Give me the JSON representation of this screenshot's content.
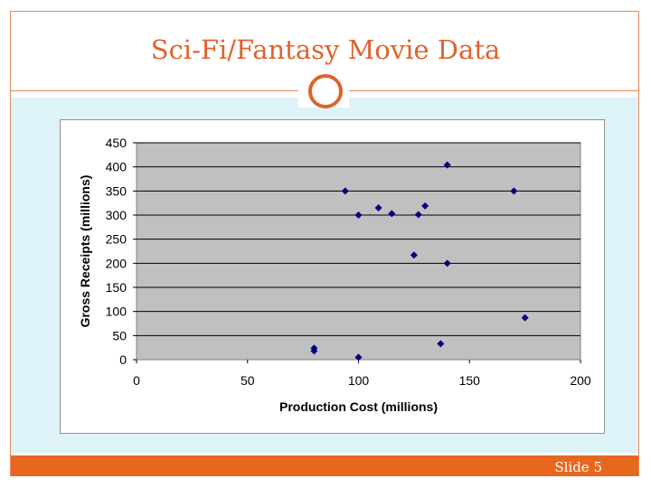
{
  "slide": {
    "title": "Sci-Fi/Fantasy Movie Data",
    "slide_number": "Slide 5",
    "accent_color": "#e0622a",
    "footer_color": "#e8671f",
    "content_bg": "#def3f7"
  },
  "chart_data": {
    "type": "scatter",
    "title": "",
    "xlabel": "Production Cost (millions)",
    "ylabel": "Gross Receipts (millions)",
    "xlim": [
      0,
      200
    ],
    "ylim": [
      0,
      450
    ],
    "xticks": [
      0,
      50,
      100,
      150,
      200
    ],
    "yticks": [
      0,
      50,
      100,
      150,
      200,
      250,
      300,
      350,
      400,
      450
    ],
    "grid": "horizontal",
    "plot_bg": "#c0c0c0",
    "marker": "diamond",
    "marker_color": "#000080",
    "legend": "none",
    "points": [
      {
        "x": 80,
        "y": 24
      },
      {
        "x": 80,
        "y": 18
      },
      {
        "x": 94,
        "y": 350
      },
      {
        "x": 100,
        "y": 300
      },
      {
        "x": 100,
        "y": 5
      },
      {
        "x": 109,
        "y": 315
      },
      {
        "x": 115,
        "y": 303
      },
      {
        "x": 125,
        "y": 217
      },
      {
        "x": 127,
        "y": 301
      },
      {
        "x": 130,
        "y": 319
      },
      {
        "x": 137,
        "y": 33
      },
      {
        "x": 140,
        "y": 404
      },
      {
        "x": 140,
        "y": 200
      },
      {
        "x": 170,
        "y": 350
      },
      {
        "x": 175,
        "y": 87
      }
    ]
  }
}
